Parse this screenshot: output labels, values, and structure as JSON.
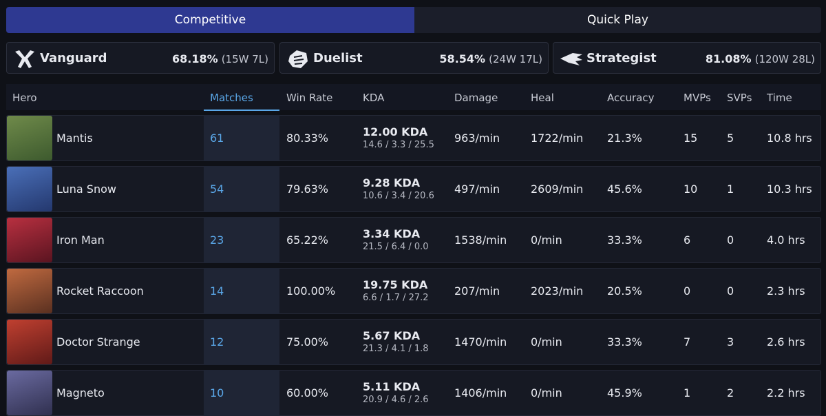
{
  "tabs": [
    "Competitive",
    "Quick Play"
  ],
  "roles": [
    {
      "name": "Vanguard",
      "winrate": "68.18%",
      "record": "(15W 7L)"
    },
    {
      "name": "Duelist",
      "winrate": "58.54%",
      "record": "(24W 17L)"
    },
    {
      "name": "Strategist",
      "winrate": "81.08%",
      "record": "(120W 28L)"
    }
  ],
  "table": {
    "headers": [
      "Hero",
      "Matches",
      "Win Rate",
      "KDA",
      "Damage",
      "Heal",
      "Accuracy",
      "MVPs",
      "SVPs",
      "Time"
    ],
    "rows": [
      {
        "hero": "Mantis",
        "matches": "61",
        "win_rate": "80.33%",
        "kda": "12.00 KDA",
        "kda_detail": "14.6 / 3.3 / 25.5",
        "damage": "963/min",
        "heal": "1722/min",
        "accuracy": "21.3%",
        "mvps": "15",
        "svps": "5",
        "time": "10.8 hrs"
      },
      {
        "hero": "Luna Snow",
        "matches": "54",
        "win_rate": "79.63%",
        "kda": "9.28 KDA",
        "kda_detail": "10.6 / 3.4 / 20.6",
        "damage": "497/min",
        "heal": "2609/min",
        "accuracy": "45.6%",
        "mvps": "10",
        "svps": "1",
        "time": "10.3 hrs"
      },
      {
        "hero": "Iron Man",
        "matches": "23",
        "win_rate": "65.22%",
        "kda": "3.34 KDA",
        "kda_detail": "21.5 / 6.4 / 0.0",
        "damage": "1538/min",
        "heal": "0/min",
        "accuracy": "33.3%",
        "mvps": "6",
        "svps": "0",
        "time": "4.0 hrs"
      },
      {
        "hero": "Rocket Raccoon",
        "matches": "14",
        "win_rate": "100.00%",
        "kda": "19.75 KDA",
        "kda_detail": "6.6 / 1.7 / 27.2",
        "damage": "207/min",
        "heal": "2023/min",
        "accuracy": "20.5%",
        "mvps": "0",
        "svps": "0",
        "time": "2.3 hrs"
      },
      {
        "hero": "Doctor Strange",
        "matches": "12",
        "win_rate": "75.00%",
        "kda": "5.67 KDA",
        "kda_detail": "21.3 / 4.1 / 1.8",
        "damage": "1470/min",
        "heal": "0/min",
        "accuracy": "33.3%",
        "mvps": "7",
        "svps": "3",
        "time": "2.6 hrs"
      },
      {
        "hero": "Magneto",
        "matches": "10",
        "win_rate": "60.00%",
        "kda": "5.11 KDA",
        "kda_detail": "20.9 / 4.6 / 2.6",
        "damage": "1406/min",
        "heal": "0/min",
        "accuracy": "45.9%",
        "mvps": "1",
        "svps": "2",
        "time": "2.2 hrs"
      }
    ]
  }
}
